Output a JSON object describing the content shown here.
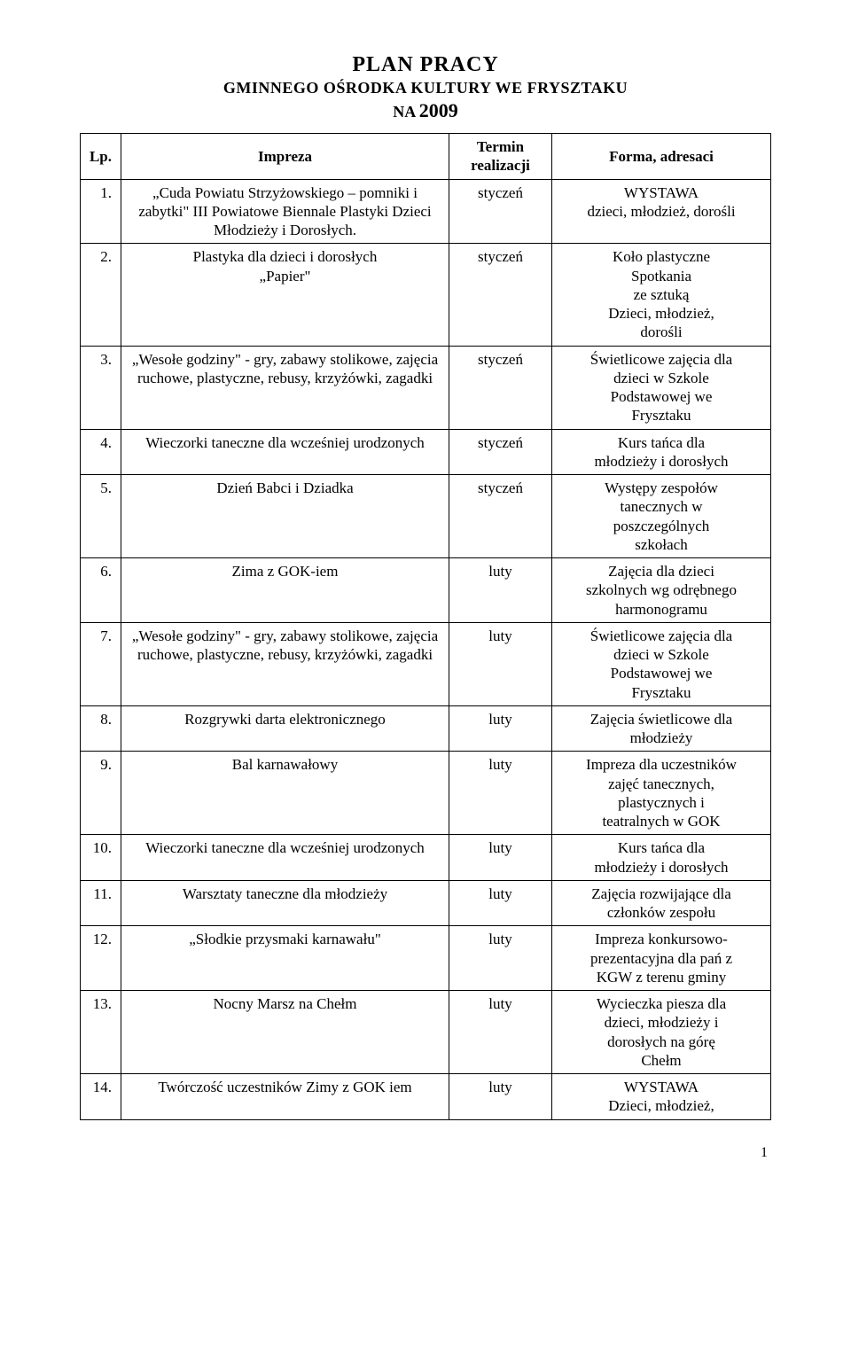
{
  "header": {
    "title_main": "PLAN  PRACY",
    "title_sub": "GMINNEGO  OŚRODKA  KULTURY  WE  FRYSZTAKU",
    "title_na": "NA",
    "title_year": "2009"
  },
  "table": {
    "columns": {
      "lp": "Lp.",
      "impreza": "Impreza",
      "termin": "Termin realizacji",
      "forma": "Forma, adresaci"
    },
    "rows": [
      {
        "lp": "1.",
        "impreza": "„Cuda Powiatu Strzyżowskiego – pomniki i zabytki\" III Powiatowe Biennale Plastyki Dzieci Młodzieży i Dorosłych.",
        "termin": "styczeń",
        "forma": "WYSTAWA\ndzieci, młodzież, dorośli"
      },
      {
        "lp": "2.",
        "impreza": "Plastyka dla dzieci i dorosłych\n„Papier\"",
        "termin": "styczeń",
        "forma": "Koło plastyczne\nSpotkania\nze sztuką\nDzieci, młodzież,\ndorośli"
      },
      {
        "lp": "3.",
        "impreza": "„Wesołe godziny\" - gry, zabawy stolikowe, zajęcia ruchowe, plastyczne, rebusy, krzyżówki, zagadki",
        "termin": "styczeń",
        "forma": "Świetlicowe zajęcia dla\ndzieci w Szkole\nPodstawowej we\nFrysztaku"
      },
      {
        "lp": "4.",
        "impreza": "Wieczorki taneczne dla wcześniej urodzonych",
        "termin": "styczeń",
        "forma": "Kurs tańca dla\nmłodzieży i dorosłych"
      },
      {
        "lp": "5.",
        "impreza": "Dzień Babci i Dziadka",
        "termin": "styczeń",
        "forma": "Występy zespołów\ntanecznych w\nposzczególnych\nszkołach"
      },
      {
        "lp": "6.",
        "impreza": "Zima z GOK-iem",
        "termin": "luty",
        "forma": "Zajęcia dla dzieci\nszkolnych wg odrębnego\nharmonogramu"
      },
      {
        "lp": "7.",
        "impreza": "„Wesołe godziny\" - gry, zabawy stolikowe, zajęcia ruchowe, plastyczne, rebusy, krzyżówki, zagadki",
        "termin": "luty",
        "forma": "Świetlicowe zajęcia dla\ndzieci w Szkole\nPodstawowej we\nFrysztaku"
      },
      {
        "lp": "8.",
        "impreza": "Rozgrywki darta elektronicznego",
        "termin": "luty",
        "forma": "Zajęcia świetlicowe dla\nmłodzieży"
      },
      {
        "lp": "9.",
        "impreza": "Bal karnawałowy",
        "termin": "luty",
        "forma": "Impreza dla uczestników\nzajęć tanecznych,\nplastycznych i\nteatralnych w GOK"
      },
      {
        "lp": "10.",
        "impreza": "Wieczorki taneczne dla wcześniej urodzonych",
        "termin": "luty",
        "forma": "Kurs tańca dla\nmłodzieży i dorosłych"
      },
      {
        "lp": "11.",
        "impreza": "Warsztaty taneczne dla młodzieży",
        "termin": "luty",
        "forma": "Zajęcia rozwijające dla\nczłonków zespołu"
      },
      {
        "lp": "12.",
        "impreza": "„Słodkie przysmaki karnawału\"",
        "termin": "luty",
        "forma": "Impreza konkursowo-\nprezentacyjna dla pań z\nKGW z terenu gminy"
      },
      {
        "lp": "13.",
        "impreza": "Nocny Marsz na Chełm",
        "termin": "luty",
        "forma": "Wycieczka piesza dla\ndzieci, młodzieży i\ndorosłych na górę\nChełm"
      },
      {
        "lp": "14.",
        "impreza": "Twórczość uczestników Zimy z GOK iem",
        "termin": "luty",
        "forma": "WYSTAWA\nDzieci, młodzież,"
      }
    ]
  },
  "page_number": "1"
}
